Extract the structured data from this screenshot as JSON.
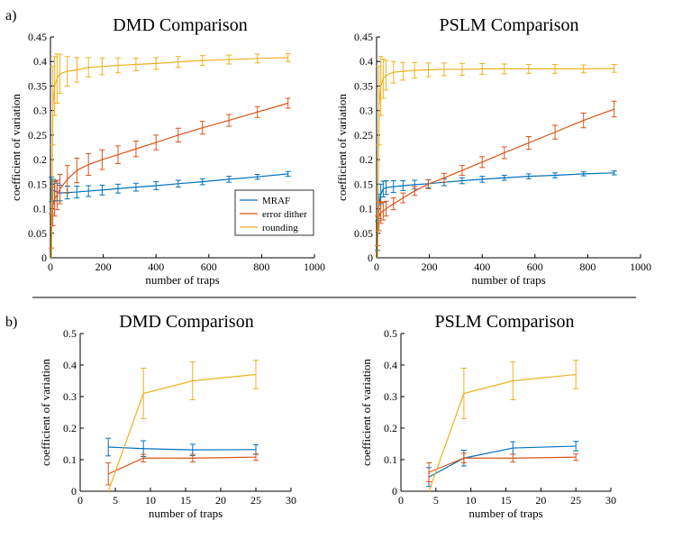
{
  "figure": {
    "panel_labels": [
      "a)",
      "b)"
    ],
    "colors": {
      "MRAF": "#0072BD",
      "error dither": "#D95319",
      "rounding": "#EDB120"
    }
  },
  "chart_data": [
    {
      "id": "a-dmd",
      "type": "line",
      "title": "DMD Comparison",
      "xlabel": "number of traps",
      "ylabel": "coefficient of variation",
      "xlim": [
        0,
        1000
      ],
      "ylim": [
        0,
        0.45
      ],
      "xticks": [
        0,
        200,
        400,
        600,
        800,
        1000
      ],
      "yticks": [
        0,
        0.05,
        0.1,
        0.15,
        0.2,
        0.25,
        0.3,
        0.35,
        0.4,
        0.45
      ],
      "legend": {
        "position": "lower-right",
        "entries": [
          "MRAF",
          "error dither",
          "rounding"
        ]
      },
      "x": [
        4,
        9,
        16,
        25,
        36,
        64,
        100,
        144,
        196,
        256,
        324,
        400,
        484,
        576,
        676,
        784,
        900
      ],
      "series": [
        {
          "name": "MRAF",
          "values": [
            0.14,
            0.138,
            0.136,
            0.134,
            0.132,
            0.133,
            0.134,
            0.136,
            0.138,
            0.141,
            0.144,
            0.147,
            0.151,
            0.155,
            0.16,
            0.165,
            0.171
          ],
          "errors": [
            0.025,
            0.022,
            0.02,
            0.018,
            0.016,
            0.013,
            0.012,
            0.011,
            0.01,
            0.009,
            0.008,
            0.008,
            0.007,
            0.006,
            0.006,
            0.005,
            0.005
          ]
        },
        {
          "name": "error dither",
          "values": [
            0.055,
            0.105,
            0.12,
            0.128,
            0.14,
            0.16,
            0.178,
            0.19,
            0.2,
            0.21,
            0.222,
            0.235,
            0.25,
            0.265,
            0.28,
            0.297,
            0.315
          ],
          "errors": [
            0.035,
            0.04,
            0.035,
            0.03,
            0.03,
            0.028,
            0.025,
            0.022,
            0.02,
            0.018,
            0.016,
            0.015,
            0.014,
            0.013,
            0.012,
            0.011,
            0.01
          ]
        },
        {
          "name": "rounding",
          "values": [
            0.0,
            0.31,
            0.35,
            0.365,
            0.375,
            0.38,
            0.383,
            0.388,
            0.39,
            0.392,
            0.394,
            0.396,
            0.399,
            0.402,
            0.404,
            0.406,
            0.408
          ],
          "errors": [
            0.0,
            0.08,
            0.06,
            0.05,
            0.04,
            0.03,
            0.025,
            0.02,
            0.017,
            0.015,
            0.013,
            0.012,
            0.011,
            0.01,
            0.009,
            0.009,
            0.008
          ]
        }
      ]
    },
    {
      "id": "a-pslm",
      "type": "line",
      "title": "PSLM Comparison",
      "xlabel": "number of traps",
      "ylabel": "coefficient of variation",
      "xlim": [
        0,
        1000
      ],
      "ylim": [
        0,
        0.45
      ],
      "xticks": [
        0,
        200,
        400,
        600,
        800,
        1000
      ],
      "yticks": [
        0,
        0.05,
        0.1,
        0.15,
        0.2,
        0.25,
        0.3,
        0.35,
        0.4,
        0.45
      ],
      "x": [
        4,
        9,
        16,
        25,
        36,
        64,
        100,
        144,
        196,
        256,
        324,
        400,
        484,
        576,
        676,
        784,
        900
      ],
      "series": [
        {
          "name": "MRAF",
          "values": [
            0.045,
            0.105,
            0.13,
            0.14,
            0.143,
            0.145,
            0.147,
            0.149,
            0.151,
            0.154,
            0.157,
            0.16,
            0.163,
            0.166,
            0.168,
            0.171,
            0.173
          ],
          "errors": [
            0.03,
            0.025,
            0.02,
            0.016,
            0.014,
            0.012,
            0.01,
            0.009,
            0.008,
            0.007,
            0.006,
            0.006,
            0.005,
            0.005,
            0.005,
            0.004,
            0.004
          ]
        },
        {
          "name": "error dither",
          "values": [
            0.055,
            0.085,
            0.092,
            0.095,
            0.1,
            0.11,
            0.122,
            0.136,
            0.15,
            0.163,
            0.178,
            0.195,
            0.214,
            0.234,
            0.256,
            0.28,
            0.303
          ],
          "errors": [
            0.03,
            0.03,
            0.022,
            0.018,
            0.015,
            0.012,
            0.01,
            0.009,
            0.009,
            0.009,
            0.01,
            0.011,
            0.012,
            0.013,
            0.014,
            0.015,
            0.016
          ]
        },
        {
          "name": "rounding",
          "values": [
            0.0,
            0.31,
            0.35,
            0.365,
            0.372,
            0.378,
            0.38,
            0.382,
            0.383,
            0.384,
            0.384,
            0.385,
            0.385,
            0.385,
            0.385,
            0.385,
            0.386
          ],
          "errors": [
            0.0,
            0.08,
            0.06,
            0.04,
            0.03,
            0.022,
            0.018,
            0.016,
            0.014,
            0.013,
            0.012,
            0.011,
            0.01,
            0.009,
            0.009,
            0.008,
            0.008
          ]
        }
      ]
    },
    {
      "id": "b-dmd",
      "type": "line",
      "title": "DMD Comparison",
      "xlabel": "number of traps",
      "ylabel": "coefficient of variation",
      "xlim": [
        0,
        30
      ],
      "ylim": [
        0,
        0.5
      ],
      "xticks": [
        0,
        5,
        10,
        15,
        20,
        25,
        30
      ],
      "yticks": [
        0,
        0.1,
        0.2,
        0.3,
        0.4,
        0.5
      ],
      "x": [
        4,
        9,
        16,
        25
      ],
      "series": [
        {
          "name": "MRAF",
          "values": [
            0.14,
            0.135,
            0.131,
            0.132
          ],
          "errors": [
            0.028,
            0.025,
            0.018,
            0.015
          ]
        },
        {
          "name": "error dither",
          "values": [
            0.055,
            0.105,
            0.105,
            0.108
          ],
          "errors": [
            0.035,
            0.012,
            0.012,
            0.01
          ]
        },
        {
          "name": "rounding",
          "values": [
            0.0,
            0.31,
            0.35,
            0.37
          ],
          "errors": [
            0.0,
            0.08,
            0.06,
            0.045
          ]
        }
      ]
    },
    {
      "id": "b-pslm",
      "type": "line",
      "title": "PSLM Comparison",
      "xlabel": "number of traps",
      "ylabel": "coefficient of variation",
      "xlim": [
        0,
        30
      ],
      "ylim": [
        0,
        0.5
      ],
      "xticks": [
        0,
        5,
        10,
        15,
        20,
        25,
        30
      ],
      "yticks": [
        0,
        0.1,
        0.2,
        0.3,
        0.4,
        0.5
      ],
      "x": [
        4,
        9,
        16,
        25
      ],
      "series": [
        {
          "name": "MRAF",
          "values": [
            0.045,
            0.105,
            0.137,
            0.143
          ],
          "errors": [
            0.03,
            0.025,
            0.02,
            0.015
          ]
        },
        {
          "name": "error dither",
          "values": [
            0.06,
            0.105,
            0.105,
            0.108
          ],
          "errors": [
            0.03,
            0.015,
            0.012,
            0.01
          ]
        },
        {
          "name": "rounding",
          "values": [
            0.0,
            0.31,
            0.35,
            0.37
          ],
          "errors": [
            0.0,
            0.08,
            0.06,
            0.045
          ]
        }
      ]
    }
  ]
}
